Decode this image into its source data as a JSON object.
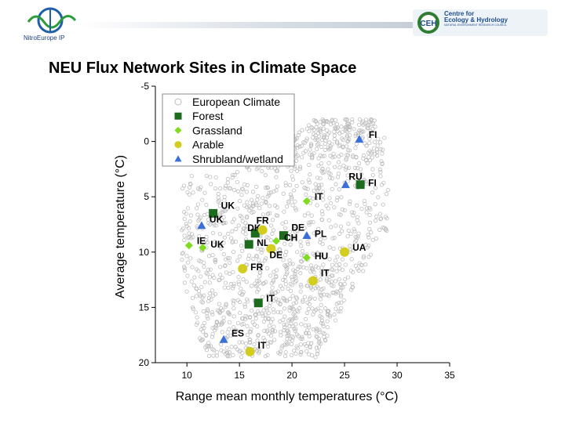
{
  "header": {
    "left_logo_caption": "NitroEurope IP",
    "right_logo_text": [
      "Centre for",
      "Ecology & Hydrology"
    ],
    "right_logo_small": "NATURAL ENVIRONMENT RESEARCH COUNCIL",
    "right_logo_abbrev": "CEH"
  },
  "page_title": "NEU Flux Network Sites in Climate Space",
  "chart_data": {
    "type": "scatter",
    "xlabel": "Range mean monthly temperatures (°C)",
    "ylabel": "Average temperature (°C)",
    "xlim": [
      7,
      35
    ],
    "ylim": [
      20,
      -5
    ],
    "y_inverted": true,
    "xticks": [
      "10",
      "15",
      "20",
      "25",
      "30",
      "35"
    ],
    "yticks": [
      "-5",
      "0",
      "5",
      "10",
      "15",
      "20"
    ],
    "grid": false,
    "legend": "top-left",
    "series": [
      {
        "name": "European Climate",
        "marker": "circle-open",
        "color": "#bdbdbd",
        "points": "dense background cloud"
      },
      {
        "name": "Forest",
        "marker": "square",
        "color": "#1d6b1d",
        "points": [
          {
            "x": 12.5,
            "y": 6.5,
            "label": "UK"
          },
          {
            "x": 16.5,
            "y": 8.3,
            "label": "DK"
          },
          {
            "x": 15.9,
            "y": 9.3,
            "label": "NL"
          },
          {
            "x": 19.2,
            "y": 8.5,
            "label": "DE"
          },
          {
            "x": 26.5,
            "y": 3.9,
            "label": "FI"
          },
          {
            "x": 16.8,
            "y": 14.6,
            "label": "IT"
          }
        ]
      },
      {
        "name": "Grassland",
        "marker": "diamond",
        "color": "#7fdc1e",
        "points": [
          {
            "x": 10.2,
            "y": 9.4,
            "label": "IE"
          },
          {
            "x": 11.5,
            "y": 9.6,
            "label": "UK"
          },
          {
            "x": 18.5,
            "y": 9.0,
            "label": "CH"
          },
          {
            "x": 21.4,
            "y": 5.4,
            "label": "IT"
          },
          {
            "x": 21.4,
            "y": 10.5,
            "label": "HU"
          }
        ]
      },
      {
        "name": "Arable",
        "marker": "circle",
        "color": "#d2cd1e",
        "points": [
          {
            "x": 17.2,
            "y": 8.0,
            "label": "FR"
          },
          {
            "x": 18.0,
            "y": 9.7,
            "label": "DE"
          },
          {
            "x": 15.3,
            "y": 11.5,
            "label": "FR"
          },
          {
            "x": 22.0,
            "y": 12.6,
            "label": "IT"
          },
          {
            "x": 25.0,
            "y": 10.0,
            "label": "UA"
          },
          {
            "x": 16.0,
            "y": 19.0,
            "label": "IT"
          }
        ]
      },
      {
        "name": "Shrubland/wetland",
        "marker": "triangle",
        "color": "#3a6fd8",
        "points": [
          {
            "x": 26.4,
            "y": -0.2,
            "label": "FI"
          },
          {
            "x": 25.1,
            "y": 3.9,
            "label": "RU"
          },
          {
            "x": 11.4,
            "y": 7.6,
            "label": "UK"
          },
          {
            "x": 21.4,
            "y": 8.5,
            "label": "PL"
          },
          {
            "x": 13.5,
            "y": 17.9,
            "label": "ES"
          }
        ]
      }
    ]
  }
}
